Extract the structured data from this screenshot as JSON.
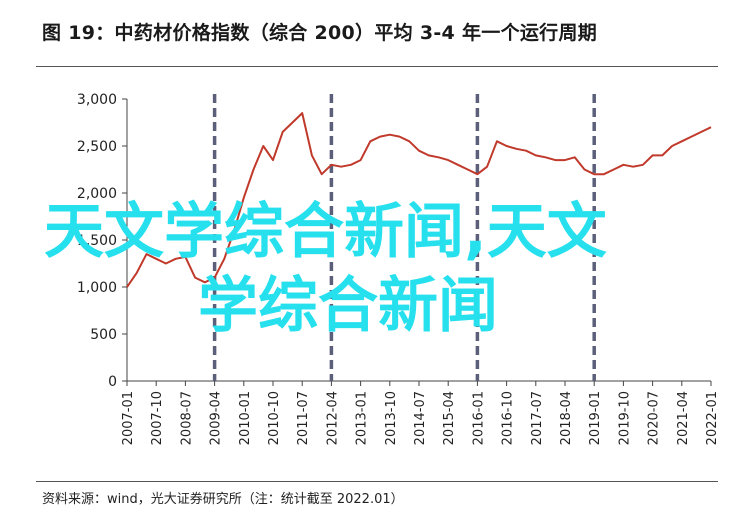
{
  "title": "图 19：中药材价格指数（综合 200）平均 3-4 年一个运行周期",
  "source": "资料来源：wind，光大证券研究所（注：统计截至 2022.01）",
  "watermark": {
    "line1": "天文学综合新闻,天文",
    "line2": "学综合新闻"
  },
  "colors": {
    "line": "#c0392b",
    "cycle_marker": "#5b5f7a",
    "watermark": "#27e0ee"
  },
  "chart_data": {
    "type": "line",
    "title": "",
    "xlabel": "",
    "ylabel": "",
    "ylim": [
      0,
      3000
    ],
    "yticks": [
      "0",
      "500",
      "1,000",
      "1,500",
      "2,000",
      "2,500",
      "3,000"
    ],
    "ytick_values": [
      0,
      500,
      1000,
      1500,
      2000,
      2500,
      3000
    ],
    "xtick_labels": [
      "2007-01",
      "2007-10",
      "2008-07",
      "2009-04",
      "2010-01",
      "2010-10",
      "2011-07",
      "2012-04",
      "2013-01",
      "2013-10",
      "2014-07",
      "2015-04",
      "2016-01",
      "2016-10",
      "2017-07",
      "2018-04",
      "2019-01",
      "2019-10",
      "2020-07",
      "2021-04",
      "2022-01"
    ],
    "cycle_markers": [
      "2009-04",
      "2012-04",
      "2016-01",
      "2019-01"
    ],
    "grid": false,
    "legend": "none",
    "series": [
      {
        "x": [
          "2007-01",
          "2007-04",
          "2007-07",
          "2007-10",
          "2008-01",
          "2008-04",
          "2008-07",
          "2008-10",
          "2009-01",
          "2009-04",
          "2009-07",
          "2009-10",
          "2010-01",
          "2010-04",
          "2010-07",
          "2010-10",
          "2011-01",
          "2011-04",
          "2011-07",
          "2011-10",
          "2012-01",
          "2012-04",
          "2012-07",
          "2012-10",
          "2013-01",
          "2013-04",
          "2013-07",
          "2013-10",
          "2014-01",
          "2014-04",
          "2014-07",
          "2014-10",
          "2015-01",
          "2015-04",
          "2015-07",
          "2015-10",
          "2016-01",
          "2016-04",
          "2016-07",
          "2016-10",
          "2017-01",
          "2017-04",
          "2017-07",
          "2017-10",
          "2018-01",
          "2018-04",
          "2018-07",
          "2018-10",
          "2019-01",
          "2019-04",
          "2019-07",
          "2019-10",
          "2020-01",
          "2020-04",
          "2020-07",
          "2020-10",
          "2021-01",
          "2021-04",
          "2021-07",
          "2021-10",
          "2022-01"
        ],
        "values": [
          1000,
          1150,
          1350,
          1300,
          1250,
          1300,
          1320,
          1100,
          1050,
          1100,
          1300,
          1600,
          1950,
          2250,
          2500,
          2350,
          2650,
          2750,
          2850,
          2400,
          2200,
          2300,
          2280,
          2300,
          2350,
          2550,
          2600,
          2620,
          2600,
          2550,
          2450,
          2400,
          2380,
          2350,
          2300,
          2250,
          2200,
          2280,
          2550,
          2500,
          2470,
          2450,
          2400,
          2380,
          2350,
          2350,
          2380,
          2250,
          2200,
          2200,
          2250,
          2300,
          2280,
          2300,
          2400,
          2400,
          2500,
          2550,
          2600,
          2650,
          2700
        ]
      }
    ]
  }
}
